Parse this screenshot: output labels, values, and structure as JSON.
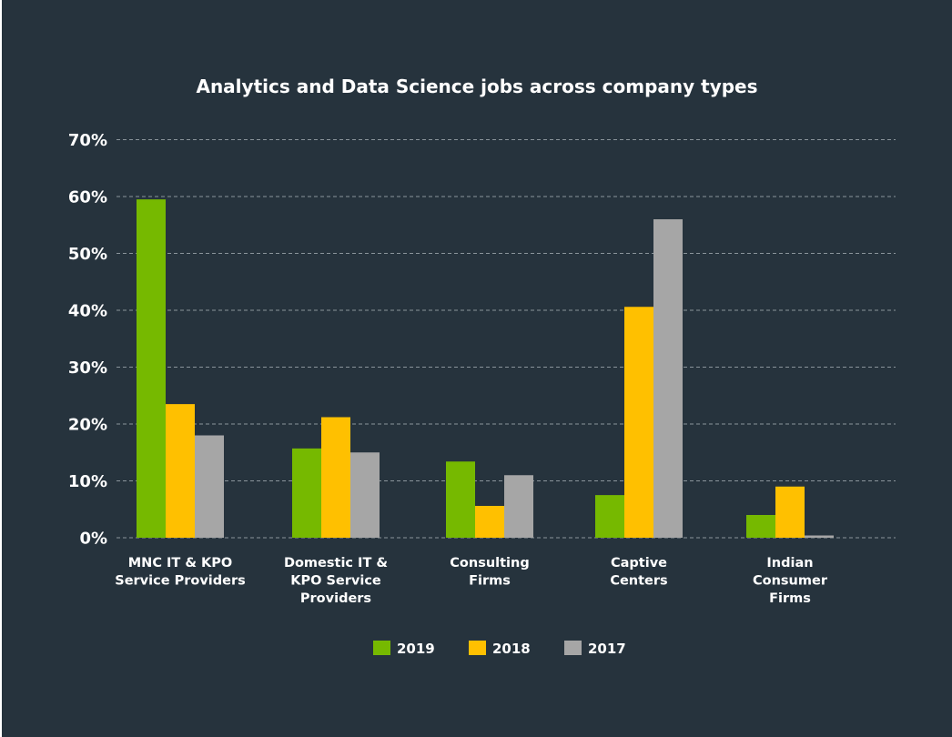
{
  "chart_data": {
    "type": "bar",
    "title": "Analytics and Data Science jobs across company types",
    "xlabel": "",
    "ylabel": "",
    "ylim": [
      0,
      70
    ],
    "y_ticks": [
      {
        "value": 0,
        "label": "0%"
      },
      {
        "value": 10,
        "label": "10%"
      },
      {
        "value": 20,
        "label": "20%"
      },
      {
        "value": 30,
        "label": "30%"
      },
      {
        "value": 40,
        "label": "40%"
      },
      {
        "value": 50,
        "label": "50%"
      },
      {
        "value": 60,
        "label": "60%"
      },
      {
        "value": 70,
        "label": "70%"
      }
    ],
    "grid": true,
    "legend_position": "bottom-center",
    "categories": [
      [
        "MNC IT & KPO",
        "Service Providers"
      ],
      [
        "Domestic IT &",
        "KPO Service",
        "Providers"
      ],
      [
        "Consulting",
        "Firms"
      ],
      [
        "Captive",
        "Centers"
      ],
      [
        "Indian",
        "Consumer",
        "Firms"
      ]
    ],
    "series": [
      {
        "name": "2019",
        "color": "#76b900",
        "values": [
          59.5,
          15.7,
          13.4,
          7.5,
          4.0
        ]
      },
      {
        "name": "2018",
        "color": "#ffc000",
        "values": [
          23.5,
          21.2,
          5.6,
          40.6,
          9.0
        ]
      },
      {
        "name": "2017",
        "color": "#a6a6a6",
        "values": [
          18.0,
          15.0,
          11.0,
          56.0,
          0.4
        ]
      }
    ]
  }
}
